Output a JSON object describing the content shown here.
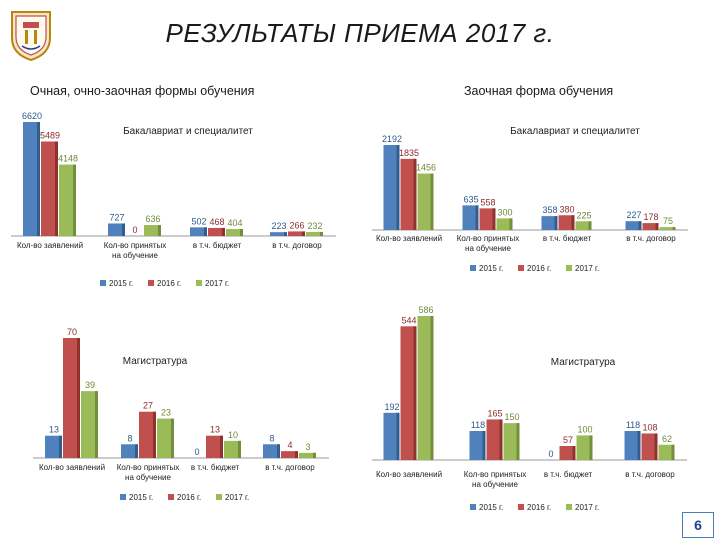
{
  "page": {
    "title": "РЕЗУЛЬТАТЫ ПРИЕМА 2017 г.",
    "left_heading": "Очная, очно-заочная формы обучения",
    "right_heading": "Заочная форма обучения",
    "page_number": "6"
  },
  "colors": {
    "y2015": "#4f81bd",
    "y2016": "#c0504d",
    "y2017": "#9bbb59",
    "title_text": "#1a1a1a",
    "page_box": "#4a7ebb"
  },
  "chart_data": [
    {
      "type": "bar",
      "title": "Бакалавриат и специалитет",
      "categories": [
        "Кол-во заявлений",
        "Кол-во принятых на обучение",
        "в т.ч. бюджет",
        "в т.ч. договор"
      ],
      "series": [
        {
          "name": "2015 г.",
          "values": [
            6620,
            727,
            502,
            223
          ]
        },
        {
          "name": "2016 г.",
          "values": [
            5489,
            0,
            468,
            266
          ]
        },
        {
          "name": "2017 г.",
          "values": [
            4148,
            636,
            404,
            232
          ]
        }
      ],
      "ylim": [
        0,
        6620
      ],
      "legend": "bottom-left"
    },
    {
      "type": "bar",
      "title": "Бакалавриат и специалитет",
      "categories": [
        "Кол-во заявлений",
        "Кол-во принятых на обучение",
        "в т.ч. бюджет",
        "в т.ч. договор"
      ],
      "series": [
        {
          "name": "2015 г.",
          "values": [
            2192,
            635,
            358,
            227
          ]
        },
        {
          "name": "2016 г.",
          "values": [
            1835,
            558,
            380,
            178
          ]
        },
        {
          "name": "2017 г.",
          "values": [
            1456,
            300,
            225,
            75
          ]
        }
      ],
      "ylim": [
        0,
        2192
      ],
      "legend": "bottom-center"
    },
    {
      "type": "bar",
      "title": "Магистратура",
      "categories": [
        "Кол-во заявлений",
        "Кол-во принятых на обучение",
        "в т.ч. бюджет",
        "в т.ч. договор"
      ],
      "series": [
        {
          "name": "2015 г.",
          "values": [
            13,
            8,
            0,
            8
          ]
        },
        {
          "name": "2016 г.",
          "values": [
            70,
            27,
            13,
            4
          ]
        },
        {
          "name": "2017 г.",
          "values": [
            39,
            23,
            10,
            3
          ]
        }
      ],
      "ylim": [
        0,
        70
      ],
      "legend": "bottom-left"
    },
    {
      "type": "bar",
      "title": "Магистратура",
      "categories": [
        "Кол-во заявлений",
        "Кол-во принятых на обучение",
        "в т.ч. бюджет",
        "в т.ч. договор"
      ],
      "series": [
        {
          "name": "2015 г.",
          "values": [
            192,
            118,
            0,
            118
          ]
        },
        {
          "name": "2016 г.",
          "values": [
            544,
            165,
            57,
            108
          ]
        },
        {
          "name": "2017 г.",
          "values": [
            586,
            150,
            100,
            62
          ]
        }
      ],
      "ylim": [
        0,
        586
      ],
      "legend": "bottom-center"
    }
  ]
}
